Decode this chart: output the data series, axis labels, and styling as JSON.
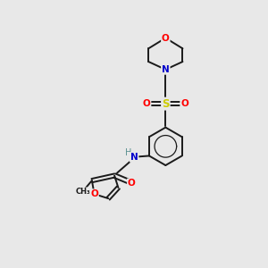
{
  "background_color": "#e8e8e8",
  "bond_color": "#1a1a1a",
  "atom_colors": {
    "O": "#ff0000",
    "N": "#0000cc",
    "S": "#cccc00",
    "C": "#1a1a1a",
    "H": "#5a9090"
  },
  "figsize": [
    3.0,
    3.0
  ],
  "dpi": 100
}
